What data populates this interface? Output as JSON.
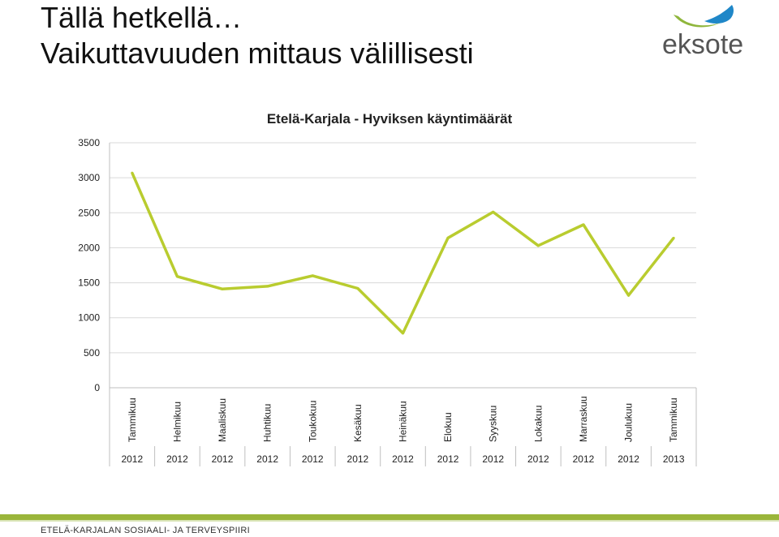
{
  "slide": {
    "title_line1": "Tällä hetkellä…",
    "title_line2": "Vaikuttavuuden mittaus välillisesti",
    "logo_text": "eksote",
    "footer": "ETELÄ-KARJALAN SOSIAALI- JA TERVEYSPIIRI"
  },
  "colors": {
    "line": "#b9cc2f",
    "logo_green": "#8fb63c",
    "logo_blue": "#1f87c8",
    "footer_bar": "#9ab53a"
  },
  "chart_data": {
    "type": "line",
    "title": "Etelä-Karjala - Hyviksen käyntimäärät",
    "xlabel": "",
    "ylabel": "",
    "ylim": [
      0,
      3500
    ],
    "yticks": [
      0,
      500,
      1000,
      1500,
      2000,
      2500,
      3000,
      3500
    ],
    "grid": true,
    "legend": "none",
    "categories": [
      {
        "month": "Tammikuu",
        "year": "2012"
      },
      {
        "month": "Helmikuu",
        "year": "2012"
      },
      {
        "month": "Maaliskuu",
        "year": "2012"
      },
      {
        "month": "Huhtikuu",
        "year": "2012"
      },
      {
        "month": "Toukokuu",
        "year": "2012"
      },
      {
        "month": "Kesäkuu",
        "year": "2012"
      },
      {
        "month": "Heinäkuu",
        "year": "2012"
      },
      {
        "month": "Elokuu",
        "year": "2012"
      },
      {
        "month": "Syyskuu",
        "year": "2012"
      },
      {
        "month": "Lokakuu",
        "year": "2012"
      },
      {
        "month": "Marraskuu",
        "year": "2012"
      },
      {
        "month": "Joulukuu",
        "year": "2012"
      },
      {
        "month": "Tammikuu",
        "year": "2013"
      }
    ],
    "values": [
      3070,
      1590,
      1410,
      1450,
      1600,
      1420,
      780,
      2140,
      2510,
      2030,
      2330,
      1320,
      2140
    ]
  }
}
